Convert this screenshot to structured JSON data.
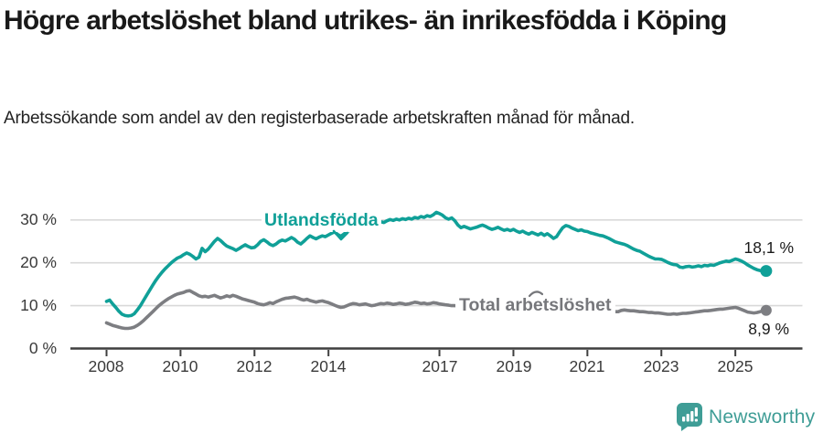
{
  "header": {
    "title": "Högre arbetslöshet bland utrikes- än inrikesfödda i Köping",
    "subtitle": "Arbetssökande som andel av den registerbaserade arbetskraften månad för månad."
  },
  "footer": {
    "brand": "Newsworthy"
  },
  "colors": {
    "teal": "#10a098",
    "gray": "#7d7e82",
    "grid": "#d9d9d9",
    "axis": "#3f3f3f",
    "text_dark": "#1a1a1a",
    "logo_teal": "#3f9d96"
  },
  "chart_data": {
    "type": "line",
    "title": "Högre arbetslöshet bland utrikes- än inrikesfödda i Köping",
    "subtitle": "Arbetssökande som andel av den registerbaserade arbetskraften månad för månad.",
    "unit": "%",
    "x_interval": "monthly",
    "x_start": "2008-01",
    "x_end": "2025-11",
    "ylim": [
      0,
      33
    ],
    "grid": true,
    "y_ticks": [
      {
        "value": 30,
        "label": "30 %"
      },
      {
        "value": 20,
        "label": "20 %"
      },
      {
        "value": 10,
        "label": "10 %"
      },
      {
        "value": 0,
        "label": "0 %"
      }
    ],
    "x_ticks": [
      {
        "year": 2008,
        "label": "2008"
      },
      {
        "year": 2010,
        "label": "2010"
      },
      {
        "year": 2012,
        "label": "2012"
      },
      {
        "year": 2014,
        "label": "2014"
      },
      {
        "year": 2017,
        "label": "2017"
      },
      {
        "year": 2019,
        "label": "2019"
      },
      {
        "year": 2021,
        "label": "2021"
      },
      {
        "year": 2023,
        "label": "2023"
      },
      {
        "year": 2025,
        "label": "2025"
      }
    ],
    "series": [
      {
        "name": "Utlandsfödda",
        "color": "#10a098",
        "end_label": "18,1 %",
        "end_value": 18.1,
        "values": [
          11.0,
          11.3,
          10.4,
          9.6,
          8.7,
          8.0,
          7.7,
          7.6,
          7.7,
          8.1,
          9.0,
          10.0,
          11.2,
          12.4,
          13.6,
          14.8,
          15.9,
          16.9,
          17.8,
          18.6,
          19.3,
          20.0,
          20.6,
          21.1,
          21.4,
          21.9,
          22.3,
          22.0,
          21.5,
          20.9,
          21.3,
          23.4,
          22.6,
          23.2,
          24.1,
          25.0,
          25.7,
          25.2,
          24.5,
          23.9,
          23.6,
          23.3,
          22.9,
          23.3,
          23.8,
          24.2,
          23.8,
          23.5,
          23.6,
          24.2,
          25.0,
          25.4,
          24.9,
          24.3,
          24.0,
          24.4,
          25.0,
          25.3,
          25.1,
          25.5,
          25.9,
          25.5,
          24.8,
          24.4,
          25.0,
          25.7,
          26.3,
          25.9,
          25.6,
          26.0,
          26.3,
          26.1,
          26.5,
          26.9,
          27.2,
          26.6,
          26.2,
          26.7,
          27.3,
          27.6,
          27.9,
          28.2,
          28.0,
          28.4,
          28.7,
          29.0,
          28.6,
          28.9,
          29.3,
          29.6,
          29.4,
          29.8,
          30.1,
          29.9,
          30.2,
          30.0,
          30.3,
          30.1,
          30.4,
          30.2,
          30.6,
          30.4,
          30.8,
          30.6,
          31.0,
          30.8,
          31.2,
          31.8,
          31.5,
          31.1,
          30.5,
          30.2,
          30.5,
          29.8,
          28.8,
          28.2,
          28.5,
          28.2,
          27.9,
          28.1,
          28.3,
          28.6,
          28.8,
          28.5,
          28.1,
          27.8,
          28.0,
          28.3,
          27.9,
          27.6,
          27.8,
          27.5,
          27.8,
          27.4,
          27.1,
          27.4,
          27.0,
          26.7,
          27.1,
          26.8,
          26.5,
          26.9,
          26.4,
          26.8,
          26.3,
          25.7,
          26.1,
          27.2,
          28.2,
          28.7,
          28.5,
          28.1,
          27.8,
          27.5,
          27.7,
          27.4,
          27.3,
          27.0,
          26.8,
          26.6,
          26.4,
          26.3,
          26.0,
          25.7,
          25.3,
          24.9,
          24.7,
          24.5,
          24.3,
          24.0,
          23.6,
          23.2,
          22.9,
          22.7,
          22.3,
          21.9,
          21.5,
          21.2,
          20.9,
          20.9,
          20.8,
          20.5,
          20.1,
          19.8,
          19.6,
          19.5,
          19.0,
          18.9,
          19.1,
          19.2,
          19.0,
          19.1,
          19.3,
          19.1,
          19.4,
          19.3,
          19.5,
          19.4,
          19.7,
          20.0,
          20.2,
          20.4,
          20.3,
          20.6,
          20.9,
          20.7,
          20.4,
          20.0,
          19.5,
          19.1,
          18.7,
          18.4,
          18.2,
          18.1,
          18.1
        ]
      },
      {
        "name": "Total arbetslöshet",
        "color": "#7d7e82",
        "end_label": "8,9 %",
        "end_value": 8.9,
        "values": [
          6.0,
          5.7,
          5.4,
          5.2,
          5.0,
          4.8,
          4.7,
          4.7,
          4.8,
          5.0,
          5.4,
          5.9,
          6.5,
          7.2,
          7.9,
          8.6,
          9.3,
          10.0,
          10.6,
          11.1,
          11.6,
          12.0,
          12.4,
          12.7,
          12.9,
          13.1,
          13.4,
          13.5,
          13.1,
          12.7,
          12.3,
          12.1,
          12.2,
          12.0,
          12.2,
          12.4,
          12.1,
          11.8,
          12.0,
          12.3,
          12.1,
          12.4,
          12.2,
          11.9,
          11.6,
          11.4,
          11.2,
          11.0,
          10.8,
          10.5,
          10.3,
          10.2,
          10.4,
          10.7,
          10.5,
          10.9,
          11.2,
          11.5,
          11.7,
          11.8,
          11.9,
          12.0,
          11.8,
          11.5,
          11.3,
          11.5,
          11.2,
          11.0,
          10.8,
          11.0,
          11.1,
          10.9,
          10.7,
          10.4,
          10.1,
          9.8,
          9.6,
          9.7,
          10.0,
          10.3,
          10.5,
          10.4,
          10.2,
          10.3,
          10.4,
          10.2,
          10.0,
          10.1,
          10.3,
          10.5,
          10.4,
          10.6,
          10.5,
          10.3,
          10.4,
          10.6,
          10.5,
          10.3,
          10.4,
          10.6,
          10.8,
          10.7,
          10.5,
          10.6,
          10.4,
          10.5,
          10.7,
          10.6,
          10.4,
          10.3,
          10.2,
          10.1,
          10.0,
          10.0,
          9.9,
          9.8,
          9.8,
          9.7,
          9.7,
          9.6,
          9.5,
          9.5,
          9.4,
          9.3,
          9.3,
          9.2,
          9.1,
          9.1,
          9.0,
          9.0,
          8.9,
          8.9,
          8.8,
          8.8,
          8.7,
          8.7,
          8.6,
          8.6,
          8.7,
          8.6,
          8.7,
          8.8,
          8.8,
          8.9,
          9.0,
          9.2,
          9.5,
          9.8,
          10.0,
          9.9,
          9.8,
          9.7,
          9.6,
          9.5,
          9.4,
          9.3,
          9.2,
          9.1,
          9.0,
          8.9,
          8.9,
          8.8,
          8.8,
          8.7,
          8.7,
          8.6,
          8.6,
          8.9,
          9.0,
          8.9,
          8.8,
          8.8,
          8.7,
          8.6,
          8.6,
          8.5,
          8.4,
          8.4,
          8.3,
          8.3,
          8.2,
          8.1,
          8.0,
          8.0,
          8.1,
          8.0,
          8.1,
          8.2,
          8.2,
          8.3,
          8.4,
          8.5,
          8.6,
          8.7,
          8.8,
          8.8,
          8.9,
          9.0,
          9.1,
          9.2,
          9.2,
          9.3,
          9.4,
          9.5,
          9.6,
          9.4,
          9.1,
          8.8,
          8.5,
          8.4,
          8.3,
          8.4,
          8.6,
          8.8,
          8.9
        ]
      }
    ]
  }
}
